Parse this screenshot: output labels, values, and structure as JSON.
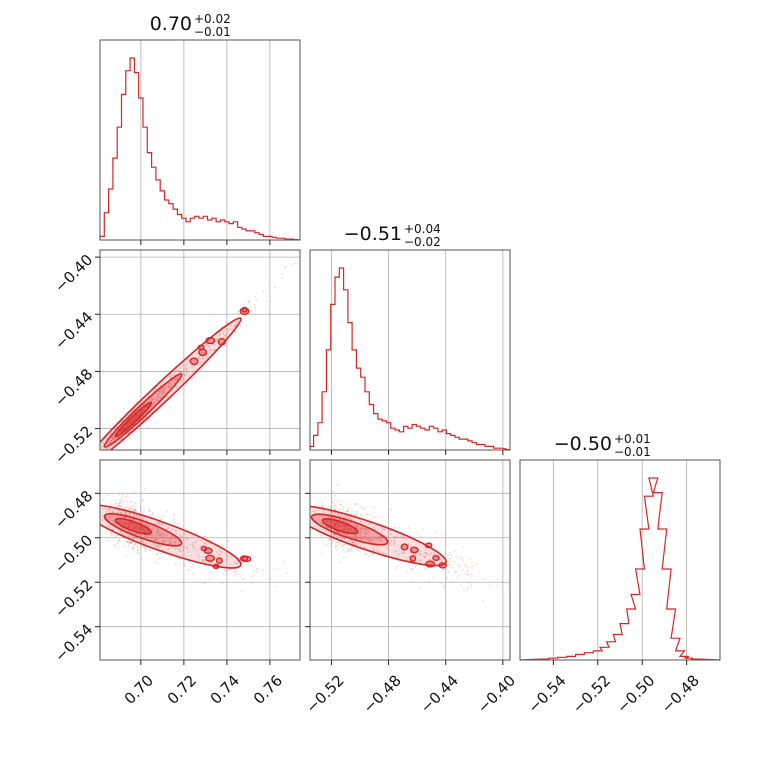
{
  "chart_data": {
    "type": "corner",
    "color": "#d62728",
    "parameters": [
      {
        "title": {
          "value": "0.70",
          "upper": "+0.02",
          "lower": "−0.01"
        },
        "range": [
          0.681,
          0.774
        ],
        "ticks": [
          {
            "value": 0.7,
            "label": "0.70"
          },
          {
            "value": 0.72,
            "label": "0.72"
          },
          {
            "value": 0.74,
            "label": "0.74"
          },
          {
            "value": 0.76,
            "label": "0.76"
          }
        ],
        "hist": [
          [
            0.682,
            0.02
          ],
          [
            0.684,
            0.15
          ],
          [
            0.686,
            0.28
          ],
          [
            0.688,
            0.45
          ],
          [
            0.69,
            0.62
          ],
          [
            0.692,
            0.8
          ],
          [
            0.694,
            0.93
          ],
          [
            0.696,
            1.0
          ],
          [
            0.698,
            0.92
          ],
          [
            0.7,
            0.78
          ],
          [
            0.702,
            0.62
          ],
          [
            0.704,
            0.48
          ],
          [
            0.706,
            0.4
          ],
          [
            0.708,
            0.33
          ],
          [
            0.71,
            0.27
          ],
          [
            0.712,
            0.22
          ],
          [
            0.714,
            0.2
          ],
          [
            0.716,
            0.17
          ],
          [
            0.718,
            0.14
          ],
          [
            0.72,
            0.12
          ],
          [
            0.722,
            0.1
          ],
          [
            0.724,
            0.12
          ],
          [
            0.726,
            0.13
          ],
          [
            0.728,
            0.12
          ],
          [
            0.73,
            0.13
          ],
          [
            0.732,
            0.11
          ],
          [
            0.734,
            0.12
          ],
          [
            0.736,
            0.1
          ],
          [
            0.738,
            0.11
          ],
          [
            0.74,
            0.1
          ],
          [
            0.742,
            0.09
          ],
          [
            0.744,
            0.1
          ],
          [
            0.746,
            0.07
          ],
          [
            0.748,
            0.06
          ],
          [
            0.75,
            0.05
          ],
          [
            0.752,
            0.05
          ],
          [
            0.754,
            0.04
          ],
          [
            0.756,
            0.03
          ],
          [
            0.758,
            0.02
          ],
          [
            0.76,
            0.02
          ],
          [
            0.762,
            0.015
          ],
          [
            0.764,
            0.01
          ],
          [
            0.766,
            0.01
          ],
          [
            0.768,
            0.005
          ],
          [
            0.77,
            0.005
          ],
          [
            0.772,
            0.002
          ]
        ]
      },
      {
        "title": {
          "value": "−0.51",
          "upper": "+0.04",
          "lower": "−0.02"
        },
        "range": [
          -0.535,
          -0.395
        ],
        "ticks": [
          {
            "value": -0.52,
            "label": "−0.52"
          },
          {
            "value": -0.48,
            "label": "−0.48"
          },
          {
            "value": -0.44,
            "label": "−0.44"
          },
          {
            "value": -0.4,
            "label": "−0.40"
          }
        ],
        "hist": [
          [
            -0.534,
            0.02
          ],
          [
            -0.531,
            0.08
          ],
          [
            -0.528,
            0.15
          ],
          [
            -0.525,
            0.32
          ],
          [
            -0.522,
            0.55
          ],
          [
            -0.519,
            0.8
          ],
          [
            -0.516,
            0.95
          ],
          [
            -0.513,
            1.0
          ],
          [
            -0.51,
            0.88
          ],
          [
            -0.507,
            0.7
          ],
          [
            -0.504,
            0.55
          ],
          [
            -0.501,
            0.45
          ],
          [
            -0.498,
            0.4
          ],
          [
            -0.495,
            0.32
          ],
          [
            -0.492,
            0.25
          ],
          [
            -0.489,
            0.2
          ],
          [
            -0.486,
            0.17
          ],
          [
            -0.483,
            0.16
          ],
          [
            -0.48,
            0.15
          ],
          [
            -0.477,
            0.12
          ],
          [
            -0.474,
            0.11
          ],
          [
            -0.471,
            0.1
          ],
          [
            -0.468,
            0.13
          ],
          [
            -0.465,
            0.12
          ],
          [
            -0.462,
            0.14
          ],
          [
            -0.459,
            0.13
          ],
          [
            -0.456,
            0.12
          ],
          [
            -0.453,
            0.11
          ],
          [
            -0.45,
            0.13
          ],
          [
            -0.447,
            0.12
          ],
          [
            -0.444,
            0.1
          ],
          [
            -0.441,
            0.11
          ],
          [
            -0.438,
            0.09
          ],
          [
            -0.435,
            0.08
          ],
          [
            -0.432,
            0.07
          ],
          [
            -0.429,
            0.06
          ],
          [
            -0.426,
            0.06
          ],
          [
            -0.423,
            0.05
          ],
          [
            -0.42,
            0.04
          ],
          [
            -0.417,
            0.03
          ],
          [
            -0.414,
            0.03
          ],
          [
            -0.411,
            0.02
          ],
          [
            -0.408,
            0.02
          ],
          [
            -0.405,
            0.01
          ],
          [
            -0.402,
            0.01
          ]
        ]
      },
      {
        "title": {
          "value": "−0.50",
          "upper": "+0.01",
          "lower": "−0.01"
        },
        "range": [
          -0.555,
          -0.465
        ],
        "ticks": [
          {
            "value": -0.54,
            "label": "−0.54"
          },
          {
            "value": -0.52,
            "label": "−0.52"
          },
          {
            "value": -0.5,
            "label": "−0.50"
          },
          {
            "value": -0.48,
            "label": "−0.48"
          }
        ],
        "hist": [
          [
            -0.544,
            0.005
          ],
          [
            -0.54,
            0.01
          ],
          [
            -0.536,
            0.015
          ],
          [
            -0.532,
            0.02
          ],
          [
            -0.528,
            0.03
          ],
          [
            -0.524,
            0.04
          ],
          [
            -0.52,
            0.05
          ],
          [
            -0.517,
            0.07
          ],
          [
            -0.514,
            0.1
          ],
          [
            -0.511,
            0.14
          ],
          [
            -0.508,
            0.2
          ],
          [
            -0.505,
            0.28
          ],
          [
            -0.503,
            0.36
          ],
          [
            -0.501,
            0.5
          ],
          [
            -0.499,
            0.72
          ],
          [
            -0.497,
            0.9
          ],
          [
            -0.495,
            1.0
          ],
          [
            -0.493,
            0.92
          ],
          [
            -0.491,
            0.72
          ],
          [
            -0.489,
            0.5
          ],
          [
            -0.487,
            0.28
          ],
          [
            -0.485,
            0.12
          ],
          [
            -0.483,
            0.05
          ],
          [
            -0.481,
            0.02
          ],
          [
            -0.479,
            0.01
          ],
          [
            -0.476,
            0.005
          ]
        ]
      }
    ],
    "pairs": [
      {
        "x": 0,
        "y": 1,
        "slope": 1.4,
        "corr": 0.97
      },
      {
        "x": 0,
        "y": 2,
        "slope": -0.3,
        "corr": -0.55
      },
      {
        "x": 1,
        "y": 2,
        "slope": -0.2,
        "corr": -0.6
      }
    ],
    "grid": true
  }
}
